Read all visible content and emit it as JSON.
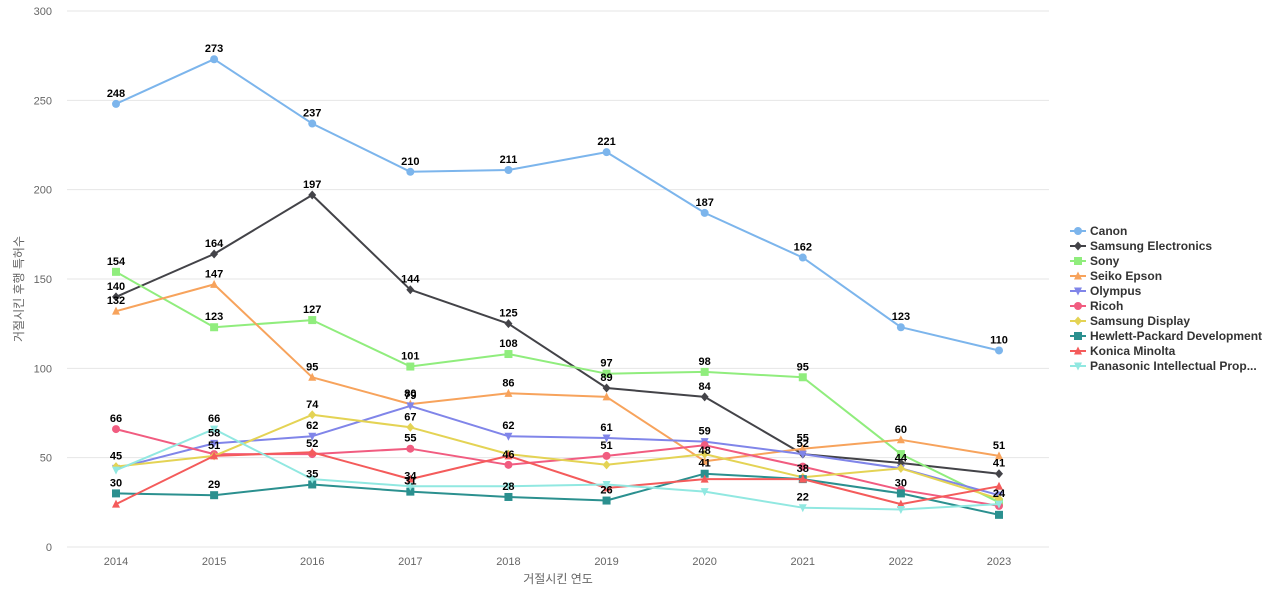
{
  "chart_data": {
    "type": "line",
    "title": "",
    "xlabel": "거절시킨 연도",
    "ylabel": "거절시킨 후행 특허수",
    "ylim": [
      0,
      300
    ],
    "yticks": [
      0,
      50,
      100,
      150,
      200,
      250,
      300
    ],
    "grid": true,
    "legend_position": "right",
    "x": [
      "2014",
      "2015",
      "2016",
      "2017",
      "2018",
      "2019",
      "2020",
      "2021",
      "2022",
      "2023"
    ],
    "series": [
      {
        "name": "Canon",
        "color": "#7cb5ec",
        "marker": "circle",
        "values": [
          248,
          273,
          237,
          210,
          211,
          221,
          187,
          162,
          123,
          110
        ]
      },
      {
        "name": "Samsung Electronics",
        "color": "#434348",
        "marker": "diamond",
        "values": [
          140,
          164,
          197,
          144,
          125,
          89,
          84,
          52,
          47,
          41
        ]
      },
      {
        "name": "Sony",
        "color": "#90ed7d",
        "marker": "square",
        "values": [
          154,
          123,
          127,
          101,
          108,
          97,
          98,
          95,
          52,
          25
        ]
      },
      {
        "name": "Seiko Epson",
        "color": "#f7a35c",
        "marker": "triangle",
        "values": [
          132,
          147,
          95,
          80,
          86,
          84,
          48,
          55,
          60,
          51
        ]
      },
      {
        "name": "Olympus",
        "color": "#8085e9",
        "marker": "triangle-down",
        "values": [
          44,
          58,
          62,
          79,
          62,
          61,
          59,
          52,
          44,
          29
        ]
      },
      {
        "name": "Ricoh",
        "color": "#f15c80",
        "marker": "circle",
        "values": [
          66,
          52,
          52,
          55,
          46,
          51,
          57,
          45,
          32,
          23
        ]
      },
      {
        "name": "Samsung Display",
        "color": "#e4d354",
        "marker": "diamond",
        "values": [
          45,
          51,
          74,
          67,
          52,
          46,
          52,
          39,
          44,
          27
        ]
      },
      {
        "name": "Hewlett-Packard Development",
        "color": "#2b908f",
        "marker": "square",
        "values": [
          30,
          29,
          35,
          31,
          28,
          26,
          41,
          38,
          30,
          18
        ]
      },
      {
        "name": "Konica Minolta",
        "color": "#f45b5b",
        "marker": "triangle",
        "values": [
          24,
          51,
          53,
          38,
          51,
          33,
          38,
          38,
          24,
          34
        ]
      },
      {
        "name": "Panasonic Intellectual Prop...",
        "color": "#91e8e1",
        "marker": "triangle-down",
        "values": [
          43,
          66,
          38,
          34,
          34,
          35,
          31,
          22,
          21,
          24
        ]
      }
    ],
    "data_labels": [
      {
        "series": "Canon",
        "points": [
          0,
          1,
          2,
          3,
          4,
          5,
          6,
          7,
          8,
          9
        ]
      },
      {
        "series": "Samsung Electronics",
        "points": [
          0,
          1,
          2,
          3,
          4,
          5,
          6,
          9
        ]
      },
      {
        "series": "Sony",
        "points": [
          0,
          1,
          2,
          3,
          4,
          5,
          6,
          7
        ]
      },
      {
        "series": "Seiko Epson",
        "points": [
          0,
          1,
          2,
          3,
          4,
          6,
          7,
          8,
          9
        ]
      },
      {
        "series": "Olympus",
        "points": [
          1,
          2,
          3,
          4,
          5,
          6,
          7
        ]
      },
      {
        "series": "Ricoh",
        "points": [
          0,
          2,
          3,
          4,
          5
        ]
      },
      {
        "series": "Samsung Display",
        "points": [
          0,
          2,
          3,
          8
        ]
      },
      {
        "series": "Hewlett-Packard Development",
        "points": [
          0,
          1,
          2,
          3,
          4,
          5,
          6,
          8
        ]
      },
      {
        "series": "Konica Minolta",
        "points": [
          1,
          7
        ]
      },
      {
        "series": "Panasonic Intellectual Prop...",
        "points": [
          1,
          3,
          7,
          9
        ]
      }
    ]
  }
}
